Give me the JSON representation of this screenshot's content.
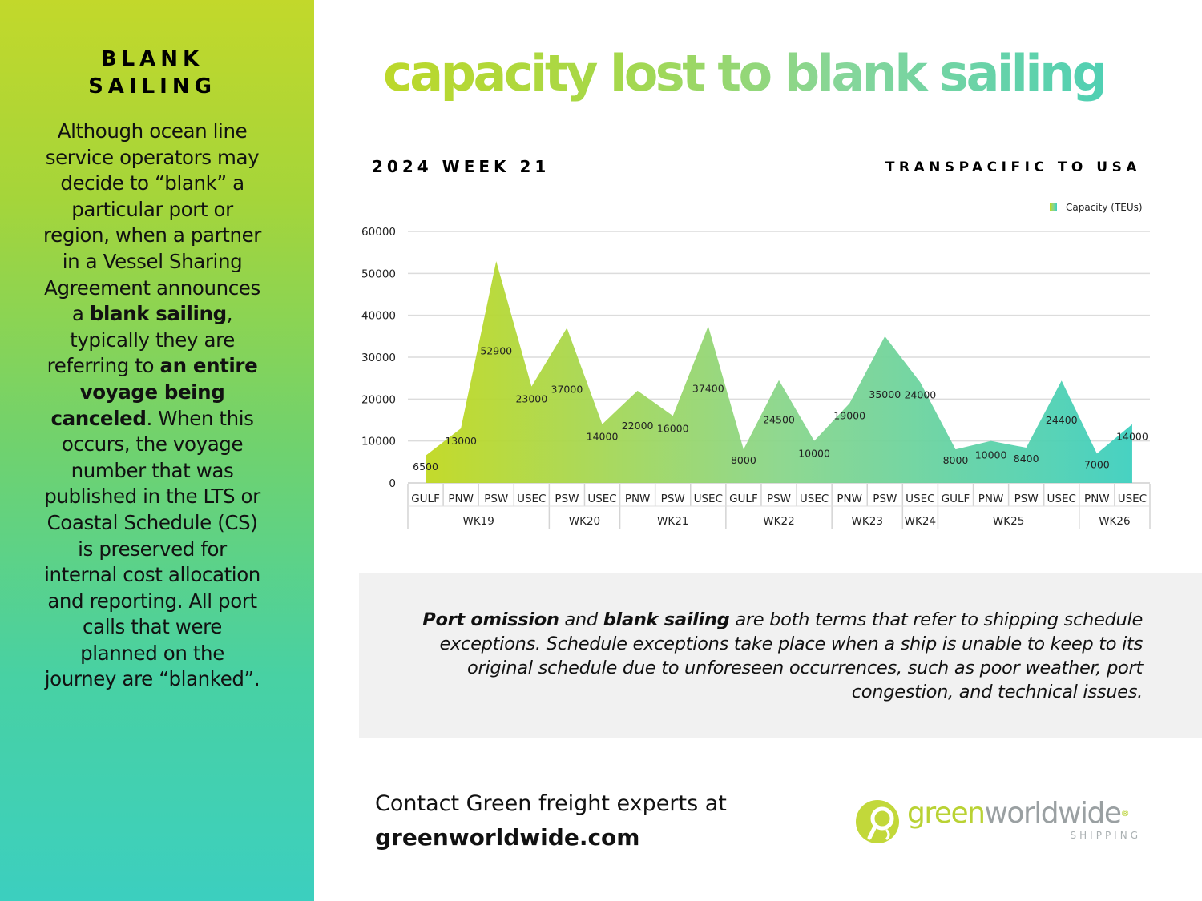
{
  "sidebar": {
    "title_line1": "BLANK",
    "title_line2": "SAILING",
    "body": [
      {
        "t": "Although ocean line service operators may decide to “blank” a particular port or region, when a partner in a Vessel Sharing Agreement announces a "
      },
      {
        "t": "blank sailing",
        "b": true
      },
      {
        "t": ", typically they are referring to "
      },
      {
        "t": "an entire voyage being canceled",
        "b": true
      },
      {
        "t": ". When this occurs, the voyage number that was published in the LTS or Coastal Schedule (CS) is preserved for internal cost allocation and reporting. All port calls that were planned on the journey are “blanked”."
      }
    ]
  },
  "header": {
    "title": "capacity lost to blank sailing",
    "week": "2024 WEEK 21",
    "region": "TRANSPACIFIC TO USA"
  },
  "chart_data": {
    "type": "area",
    "title": "",
    "xlabel": "",
    "ylabel": "",
    "ylim": [
      0,
      60000
    ],
    "yticks": [
      0,
      10000,
      20000,
      30000,
      40000,
      50000,
      60000
    ],
    "grid": true,
    "legend_position": "top-right",
    "categories": [
      "GULF",
      "PNW",
      "PSW",
      "USEC",
      "PSW",
      "USEC",
      "PNW",
      "PSW",
      "USEC",
      "GULF",
      "PSW",
      "USEC",
      "PNW",
      "PSW",
      "USEC",
      "GULF",
      "PNW",
      "PSW",
      "USEC",
      "PNW",
      "USEC"
    ],
    "groups": [
      {
        "label": "WK19",
        "count": 4
      },
      {
        "label": "WK20",
        "count": 2
      },
      {
        "label": "WK21",
        "count": 3
      },
      {
        "label": "WK22",
        "count": 3
      },
      {
        "label": "WK23",
        "count": 2
      },
      {
        "label": "WK24",
        "count": 1
      },
      {
        "label": "WK25",
        "count": 4
      },
      {
        "label": "WK26",
        "count": 2
      }
    ],
    "series": [
      {
        "name": "Capacity (TEUs)",
        "values": [
          6500,
          13000,
          52900,
          23000,
          37000,
          14000,
          22000,
          16000,
          37400,
          8000,
          24500,
          10000,
          19000,
          35000,
          24000,
          8000,
          10000,
          8400,
          24400,
          7000,
          14000
        ]
      }
    ],
    "colors": {
      "start": "#c0d820",
      "mid": "#8ad68a",
      "end": "#3ecfbf"
    }
  },
  "note": [
    {
      "t": "Port omission",
      "b": true
    },
    {
      "t": " and "
    },
    {
      "t": "blank sailing",
      "b": true
    },
    {
      "t": " are both terms that refer to shipping schedule exceptions. Schedule exceptions take place when a ship is unable to keep to its original schedule due to unforeseen occurrences, such as poor weather, port congestion, and technical issues."
    }
  ],
  "contact": {
    "line1": "Contact Green freight experts at",
    "site": "greenworldwide.com"
  },
  "logo": {
    "word_green": "green",
    "word_rest": "worldwide",
    "reg": "®",
    "sub": "SHIPPING"
  }
}
